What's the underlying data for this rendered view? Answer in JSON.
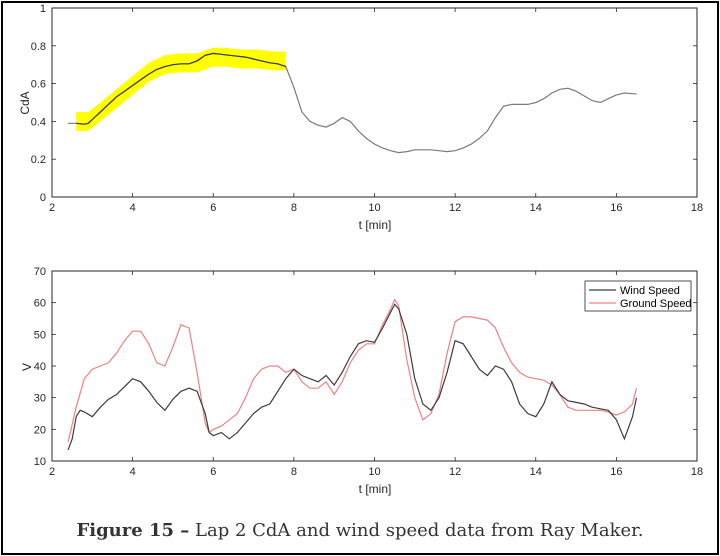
{
  "caption": {
    "label": "Figure 15 –",
    "text": "Lap 2 CdA and wind speed data from Ray Maker."
  },
  "chart_data": [
    {
      "type": "line",
      "id": "cda",
      "xlabel": "t [min]",
      "ylabel": "CdA",
      "xlim": [
        2,
        18
      ],
      "ylim": [
        0,
        1
      ],
      "xticks": [
        2,
        4,
        6,
        8,
        10,
        12,
        14,
        16,
        18
      ],
      "yticks": [
        0,
        0.2,
        0.4,
        0.6,
        0.8,
        1
      ],
      "colors": {
        "line": "#7a7a7a",
        "highlight": "#ffff00",
        "highlight_line": "#3c3c3c"
      },
      "highlight_band": {
        "x": [
          2.6,
          2.9,
          3.2,
          3.6,
          4.0,
          4.4,
          4.8,
          5.2,
          5.6,
          6.0,
          6.3,
          6.7,
          7.1,
          7.5,
          7.8
        ],
        "upper": [
          0.45,
          0.45,
          0.5,
          0.57,
          0.64,
          0.71,
          0.75,
          0.76,
          0.76,
          0.79,
          0.79,
          0.78,
          0.78,
          0.77,
          0.77
        ],
        "lower": [
          0.35,
          0.35,
          0.4,
          0.47,
          0.54,
          0.61,
          0.65,
          0.66,
          0.66,
          0.69,
          0.69,
          0.68,
          0.68,
          0.67,
          0.67
        ]
      },
      "series": [
        {
          "name": "CdA",
          "x": [
            2.4,
            2.6,
            2.8,
            2.9,
            3.0,
            3.2,
            3.4,
            3.6,
            3.8,
            4.0,
            4.2,
            4.4,
            4.6,
            4.8,
            5.0,
            5.2,
            5.4,
            5.6,
            5.8,
            6.0,
            6.2,
            6.4,
            6.6,
            6.8,
            7.0,
            7.2,
            7.4,
            7.6,
            7.8,
            8.0,
            8.2,
            8.4,
            8.6,
            8.8,
            9.0,
            9.2,
            9.4,
            9.6,
            9.8,
            10.0,
            10.2,
            10.4,
            10.6,
            10.8,
            11.0,
            11.2,
            11.4,
            11.6,
            11.8,
            12.0,
            12.2,
            12.4,
            12.6,
            12.8,
            13.0,
            13.2,
            13.4,
            13.6,
            13.8,
            14.0,
            14.2,
            14.4,
            14.6,
            14.8,
            15.0,
            15.2,
            15.4,
            15.6,
            15.8,
            16.0,
            16.2,
            16.5
          ],
          "y": [
            0.39,
            0.39,
            0.385,
            0.39,
            0.41,
            0.45,
            0.49,
            0.53,
            0.56,
            0.59,
            0.62,
            0.65,
            0.675,
            0.69,
            0.7,
            0.705,
            0.705,
            0.72,
            0.75,
            0.76,
            0.755,
            0.75,
            0.745,
            0.74,
            0.73,
            0.72,
            0.71,
            0.705,
            0.69,
            0.58,
            0.45,
            0.4,
            0.38,
            0.37,
            0.39,
            0.42,
            0.4,
            0.35,
            0.31,
            0.28,
            0.26,
            0.245,
            0.235,
            0.24,
            0.25,
            0.25,
            0.25,
            0.245,
            0.24,
            0.245,
            0.26,
            0.28,
            0.31,
            0.35,
            0.42,
            0.48,
            0.49,
            0.49,
            0.49,
            0.5,
            0.52,
            0.55,
            0.57,
            0.575,
            0.56,
            0.535,
            0.51,
            0.5,
            0.52,
            0.54,
            0.55,
            0.545
          ]
        }
      ]
    },
    {
      "type": "line",
      "id": "speed",
      "xlabel": "t [min]",
      "ylabel": "V",
      "xlim": [
        2,
        18
      ],
      "ylim": [
        10,
        70
      ],
      "xticks": [
        2,
        4,
        6,
        8,
        10,
        12,
        14,
        16,
        18
      ],
      "yticks": [
        10,
        20,
        30,
        40,
        50,
        60,
        70
      ],
      "legend": "top-right",
      "series": [
        {
          "name": "Wind Speed",
          "color": "#3c3c3c",
          "x": [
            2.4,
            2.5,
            2.6,
            2.7,
            2.8,
            3.0,
            3.2,
            3.4,
            3.6,
            3.8,
            4.0,
            4.2,
            4.4,
            4.6,
            4.8,
            5.0,
            5.2,
            5.4,
            5.6,
            5.8,
            5.9,
            6.0,
            6.2,
            6.4,
            6.6,
            6.8,
            7.0,
            7.2,
            7.4,
            7.6,
            7.8,
            8.0,
            8.2,
            8.4,
            8.6,
            8.8,
            9.0,
            9.2,
            9.4,
            9.6,
            9.8,
            10.0,
            10.2,
            10.4,
            10.5,
            10.6,
            10.8,
            11.0,
            11.2,
            11.4,
            11.6,
            11.8,
            12.0,
            12.2,
            12.4,
            12.6,
            12.8,
            13.0,
            13.2,
            13.4,
            13.6,
            13.8,
            14.0,
            14.2,
            14.4,
            14.6,
            14.8,
            15.0,
            15.2,
            15.4,
            15.6,
            15.8,
            16.0,
            16.2,
            16.4,
            16.5
          ],
          "y": [
            13.5,
            17,
            24,
            26,
            25.5,
            24,
            27,
            29.5,
            31,
            33.5,
            36,
            35,
            32,
            28.5,
            26,
            29.5,
            32,
            33,
            32,
            25,
            19,
            18,
            19,
            17,
            19,
            22,
            25,
            27,
            28,
            32,
            36,
            39,
            37,
            36,
            35,
            37,
            34,
            38,
            43,
            47,
            48,
            47.5,
            52,
            57,
            59.5,
            58,
            50,
            36,
            28,
            26,
            30,
            38,
            48,
            47,
            43,
            39,
            37,
            40,
            39,
            35,
            28,
            25,
            24,
            28,
            35,
            31,
            29,
            28.5,
            28,
            27,
            26.5,
            26,
            23,
            17,
            24,
            30
          ]
        },
        {
          "name": "Ground Speed",
          "color": "#f08080",
          "x": [
            2.4,
            2.6,
            2.8,
            3.0,
            3.2,
            3.4,
            3.6,
            3.8,
            4.0,
            4.2,
            4.4,
            4.6,
            4.8,
            5.0,
            5.2,
            5.4,
            5.6,
            5.8,
            5.9,
            6.0,
            6.2,
            6.4,
            6.6,
            6.8,
            7.0,
            7.2,
            7.4,
            7.6,
            7.8,
            8.0,
            8.2,
            8.4,
            8.6,
            8.8,
            9.0,
            9.2,
            9.4,
            9.6,
            9.8,
            10.0,
            10.2,
            10.4,
            10.5,
            10.6,
            10.8,
            11.0,
            11.2,
            11.4,
            11.6,
            11.8,
            12.0,
            12.2,
            12.4,
            12.6,
            12.8,
            13.0,
            13.2,
            13.4,
            13.6,
            13.8,
            14.0,
            14.2,
            14.4,
            14.6,
            14.8,
            15.0,
            15.2,
            15.4,
            15.6,
            15.8,
            16.0,
            16.2,
            16.4,
            16.5
          ],
          "y": [
            16,
            27,
            36,
            39,
            40,
            41,
            44,
            48,
            51,
            51,
            47,
            41,
            40,
            46,
            53,
            52,
            38,
            22,
            19,
            20,
            21,
            23,
            25,
            30,
            36,
            39,
            40,
            40,
            38,
            39,
            35,
            33,
            33,
            35,
            31,
            35,
            41,
            45,
            47,
            47,
            53,
            58,
            61,
            59,
            42,
            30,
            23,
            25,
            31,
            44,
            54,
            55.5,
            55.5,
            55,
            54.5,
            52,
            46,
            41,
            38,
            36.5,
            36,
            35.5,
            34,
            31,
            27,
            26,
            26,
            26,
            26,
            25.5,
            24.5,
            25.5,
            28,
            33
          ]
        }
      ]
    }
  ]
}
